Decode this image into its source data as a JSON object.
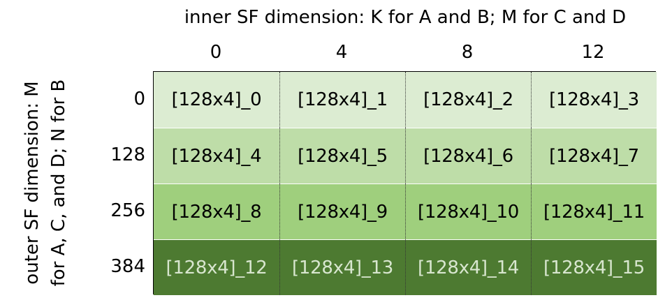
{
  "titles": {
    "inner": "inner SF dimension: K for A and B; M for C and D",
    "outer": "outer SF dimension: M for A, C, and D; N for B"
  },
  "column_headers": [
    "0",
    "4",
    "8",
    "12"
  ],
  "row_headers": [
    "0",
    "128",
    "256",
    "384"
  ],
  "cells": [
    [
      "[128x4]_0",
      "[128x4]_1",
      "[128x4]_2",
      "[128x4]_3"
    ],
    [
      "[128x4]_4",
      "[128x4]_5",
      "[128x4]_6",
      "[128x4]_7"
    ],
    [
      "[128x4]_8",
      "[128x4]_9",
      "[128x4]_10",
      "[128x4]_11"
    ],
    [
      "[128x4]_12",
      "[128x4]_13",
      "[128x4]_14",
      "[128x4]_15"
    ]
  ],
  "colors": {
    "row_backgrounds": [
      "#dcecd2",
      "#bedda8",
      "#9fcf7d",
      "#4d7a31"
    ],
    "row_text": [
      "#000000",
      "#000000",
      "#000000",
      "#d8e6cf"
    ]
  }
}
